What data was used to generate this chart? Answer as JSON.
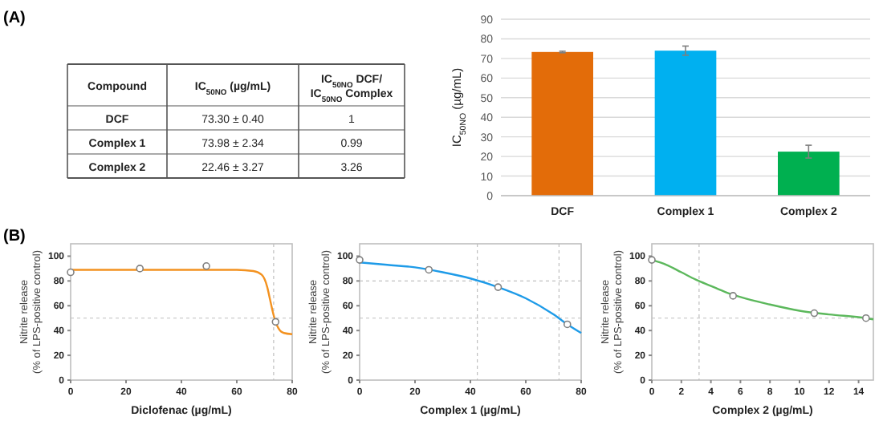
{
  "chart_data": [
    {
      "type": "other",
      "title": "(A)",
      "annotations": [
        "Compound",
        "IC$_{50NO}$ (µg/mL)",
        "IC$_{50NO}$ DCF/ IC$_{50NO}$ Complex",
        "DCF",
        "73.30 ± 0.40",
        "1",
        "Complex 1",
        "73.98 ± 2.34",
        "0.99",
        "Complex 2",
        "22.46 ± 3.27",
        "3.26"
      ]
    },
    {
      "type": "bar",
      "categories": [
        "DCF",
        "Complex 1",
        "Complex 2"
      ],
      "values": [
        73.3,
        73.98,
        22.46
      ],
      "errors": [
        0.4,
        2.34,
        3.27
      ],
      "colors": [
        "#e36c09",
        "#00b0f0",
        "#00b050"
      ],
      "ylabel": "IC$_{50NO}$ (µg/mL)",
      "ylim": [
        0,
        90
      ],
      "yticks": [
        0,
        10,
        20,
        30,
        40,
        50,
        60,
        70,
        80,
        90
      ],
      "grid": "y"
    },
    {
      "type": "scatter",
      "annotations": [
        "(B)"
      ],
      "xlabel": "Diclofenac (µg/mL)",
      "ylabel": "Nitrite release (% of LPS-positive control)",
      "xlim": [
        0,
        80
      ],
      "xticks": [
        0,
        20,
        40,
        60,
        80
      ],
      "ylim": [
        0,
        110
      ],
      "yticks": [
        0,
        20,
        40,
        60,
        80,
        100
      ],
      "grid": false,
      "ref_lines": [
        {
          "axis": "x",
          "value": 73.3,
          "color": "#bfbfbf",
          "line_style": "dotted"
        },
        {
          "axis": "y",
          "value": 50,
          "color": "#bfbfbf",
          "line_style": "dotted"
        }
      ],
      "series": [
        {
          "type": "line",
          "color": "#f39220",
          "marker": "none",
          "x": [
            0,
            60,
            66,
            69,
            71,
            72,
            73,
            74,
            75,
            77,
            80
          ],
          "values": [
            89,
            89,
            88,
            85,
            75,
            65,
            55,
            47,
            42,
            38,
            37
          ]
        },
        {
          "type": "scatter",
          "color": "#808080",
          "marker": "circle",
          "x": [
            0,
            25,
            49,
            74
          ],
          "values": [
            87,
            90,
            92,
            47
          ]
        }
      ]
    },
    {
      "type": "scatter",
      "xlabel": "Complex 1 (µg/mL)",
      "ylabel": "Nitrite release (% of LPS-positive control)",
      "xlim": [
        0,
        80
      ],
      "xticks": [
        0,
        20,
        40,
        60,
        80
      ],
      "ylim": [
        0,
        110
      ],
      "yticks": [
        0,
        20,
        40,
        60,
        80,
        100
      ],
      "grid": false,
      "ref_lines": [
        {
          "axis": "x",
          "value": 42.5,
          "color": "#bfbfbf",
          "line_style": "dotted"
        },
        {
          "axis": "x",
          "value": 72,
          "color": "#bfbfbf",
          "line_style": "dotted"
        },
        {
          "axis": "y",
          "value": 80,
          "color": "#bfbfbf",
          "line_style": "dotted"
        },
        {
          "axis": "y",
          "value": 50,
          "color": "#bfbfbf",
          "line_style": "dotted"
        }
      ],
      "series": [
        {
          "type": "line",
          "color": "#1e9be8",
          "marker": "none",
          "x": [
            0,
            10,
            20,
            30,
            40,
            50,
            60,
            70,
            75,
            80
          ],
          "values": [
            95,
            93,
            91,
            87,
            82,
            75,
            66,
            53,
            45,
            38
          ]
        },
        {
          "type": "scatter",
          "color": "#808080",
          "marker": "circle",
          "x": [
            0,
            25,
            50,
            75
          ],
          "values": [
            97,
            89,
            75,
            45
          ]
        }
      ]
    },
    {
      "type": "scatter",
      "xlabel": "Complex 2 (µg/mL)",
      "ylabel": "Nitrite release (% of LPS-positive control)",
      "xlim": [
        0,
        15
      ],
      "xticks": [
        0,
        2,
        4,
        6,
        8,
        10,
        12,
        14
      ],
      "ylim": [
        0,
        110
      ],
      "yticks": [
        0,
        20,
        40,
        60,
        80,
        100
      ],
      "grid": false,
      "ref_lines": [
        {
          "axis": "x",
          "value": 3.2,
          "color": "#bfbfbf",
          "line_style": "dotted"
        },
        {
          "axis": "y",
          "value": 50,
          "color": "#bfbfbf",
          "line_style": "dotted"
        }
      ],
      "series": [
        {
          "type": "line",
          "color": "#5cb85c",
          "marker": "none",
          "x": [
            0,
            1,
            2,
            3,
            4,
            5,
            6,
            8,
            10,
            12,
            14.5,
            15
          ],
          "values": [
            97,
            93,
            87,
            81,
            76,
            71,
            67,
            61,
            56,
            53,
            50,
            49
          ]
        },
        {
          "type": "scatter",
          "color": "#808080",
          "marker": "circle",
          "x": [
            0,
            5.5,
            11,
            14.5
          ],
          "values": [
            97,
            68,
            54,
            50
          ]
        }
      ]
    }
  ]
}
